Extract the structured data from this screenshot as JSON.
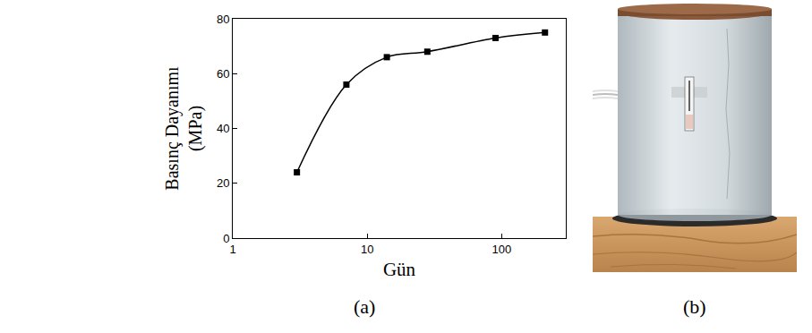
{
  "chart_data": {
    "type": "line",
    "panel_label": "(a)",
    "x_label": "Gün",
    "y_label": "Basınç Dayanımı (MPa)",
    "x": [
      3,
      7,
      14,
      28,
      90,
      210
    ],
    "values": [
      24,
      56,
      66,
      68,
      73,
      75
    ],
    "color": "#000000",
    "marker": "square",
    "line_style": "solid",
    "log": "x",
    "xlim": [
      1,
      300
    ],
    "xticks": [
      1,
      10,
      100
    ],
    "ylim": [
      0,
      80
    ],
    "yticks": [
      0,
      20,
      40,
      60,
      80
    ],
    "grid": false
  },
  "photo_panel": {
    "label": "(b)"
  }
}
